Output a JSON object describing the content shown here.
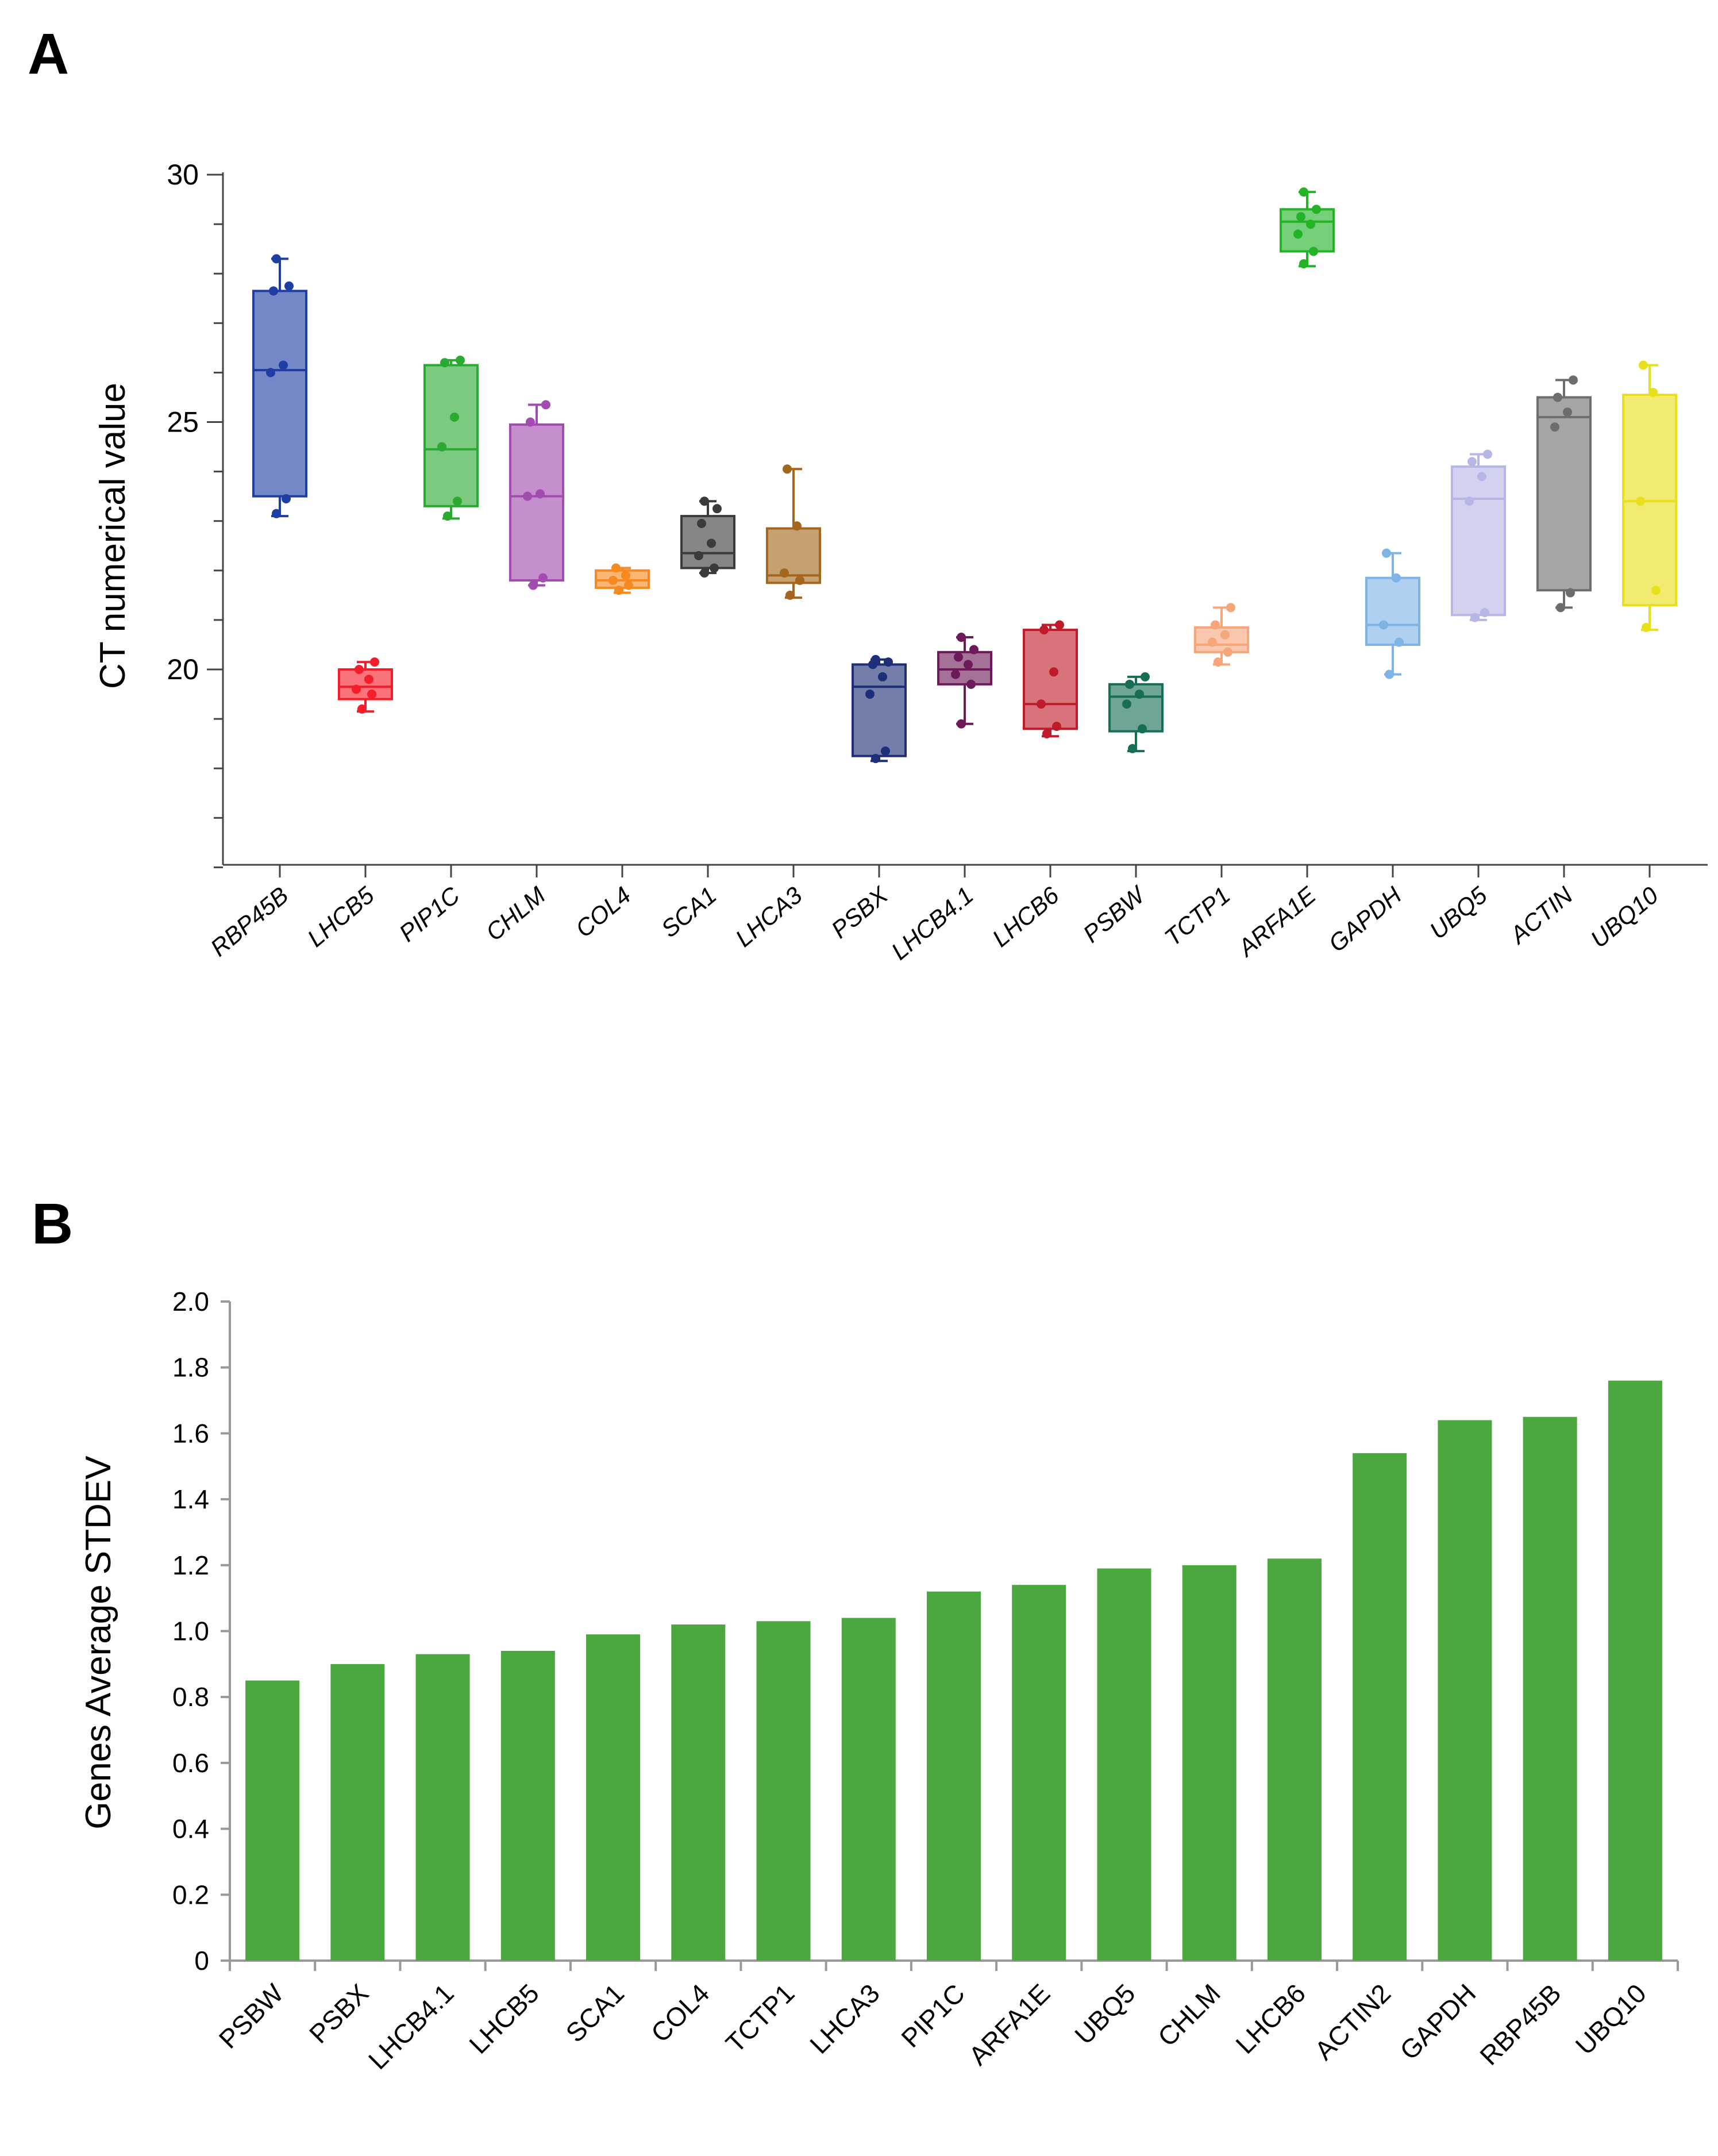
{
  "panels": {
    "a_label": "A",
    "b_label": "B"
  },
  "chart_data": [
    {
      "type": "box",
      "panel": "A",
      "title": "",
      "xlabel": "",
      "ylabel": "CT numerical value",
      "ylim": [
        16,
        30
      ],
      "yticks": [
        20,
        25,
        30
      ],
      "categories": [
        "RBP45B",
        "LHCB5",
        "PIP1C",
        "CHLM",
        "COL4",
        "SCA1",
        "LHCA3",
        "PSBX",
        "LHCB4.1",
        "LHCB6",
        "PSBW",
        "TCTP1",
        "ARFA1E",
        "GAPDH",
        "UBQ5",
        "ACTIN",
        "UBQ10"
      ],
      "colors": [
        "#1f3ea3",
        "#f51d2a",
        "#2aaa31",
        "#a24bb0",
        "#f6891f",
        "#3b3b3b",
        "#a4661c",
        "#1f2e78",
        "#6d1a5b",
        "#c01b2a",
        "#176e56",
        "#f6a679",
        "#22b326",
        "#7fb3e6",
        "#b6b7e6",
        "#6d6d6d",
        "#e8e01a"
      ],
      "boxes": [
        {
          "min": 23.1,
          "q1": 23.5,
          "median": 26.05,
          "q3": 27.65,
          "max": 28.3,
          "points": [
            23.15,
            23.45,
            26.0,
            26.15,
            27.65,
            27.75,
            28.3
          ]
        },
        {
          "min": 19.15,
          "q1": 19.4,
          "median": 19.65,
          "q3": 20.0,
          "max": 20.15,
          "points": [
            19.2,
            19.5,
            19.6,
            19.8,
            20.0,
            20.15
          ]
        },
        {
          "min": 23.05,
          "q1": 23.3,
          "median": 24.45,
          "q3": 26.15,
          "max": 26.25,
          "points": [
            23.1,
            23.4,
            24.5,
            25.1,
            26.2,
            26.25
          ]
        },
        {
          "min": 21.7,
          "q1": 21.8,
          "median": 23.5,
          "q3": 24.95,
          "max": 25.35,
          "points": [
            21.7,
            21.85,
            23.5,
            23.55,
            25.0,
            25.35
          ]
        },
        {
          "min": 21.55,
          "q1": 21.65,
          "median": 21.8,
          "q3": 22.0,
          "max": 22.05,
          "points": [
            21.6,
            21.7,
            21.8,
            21.9,
            22.05
          ]
        },
        {
          "min": 21.95,
          "q1": 22.05,
          "median": 22.35,
          "q3": 23.1,
          "max": 23.4,
          "points": [
            21.95,
            22.05,
            22.3,
            22.55,
            22.95,
            23.25,
            23.4
          ]
        },
        {
          "min": 21.45,
          "q1": 21.75,
          "median": 21.9,
          "q3": 22.85,
          "max": 24.05,
          "points": [
            21.5,
            21.8,
            21.95,
            22.9,
            24.05
          ]
        },
        {
          "min": 18.15,
          "q1": 18.25,
          "median": 19.65,
          "q3": 20.1,
          "max": 20.2,
          "points": [
            18.2,
            18.35,
            19.5,
            19.85,
            20.1,
            20.15,
            20.2
          ]
        },
        {
          "min": 18.9,
          "q1": 19.7,
          "median": 20.0,
          "q3": 20.35,
          "max": 20.65,
          "points": [
            18.9,
            19.7,
            19.9,
            20.1,
            20.25,
            20.4,
            20.65
          ]
        },
        {
          "min": 18.65,
          "q1": 18.8,
          "median": 19.3,
          "q3": 20.8,
          "max": 20.9,
          "points": [
            18.7,
            18.85,
            19.3,
            19.95,
            20.8,
            20.9
          ]
        },
        {
          "min": 18.35,
          "q1": 18.75,
          "median": 19.45,
          "q3": 19.7,
          "max": 19.85,
          "points": [
            18.4,
            18.8,
            19.3,
            19.5,
            19.7,
            19.85
          ]
        },
        {
          "min": 20.1,
          "q1": 20.35,
          "median": 20.5,
          "q3": 20.85,
          "max": 21.25,
          "points": [
            20.15,
            20.35,
            20.55,
            20.7,
            20.9,
            21.25
          ]
        },
        {
          "min": 28.15,
          "q1": 28.45,
          "median": 29.05,
          "q3": 29.3,
          "max": 29.65,
          "points": [
            28.2,
            28.45,
            28.8,
            29.0,
            29.15,
            29.3,
            29.65
          ]
        },
        {
          "min": 19.9,
          "q1": 20.5,
          "median": 20.9,
          "q3": 21.85,
          "max": 22.35,
          "points": [
            19.9,
            20.55,
            20.9,
            21.85,
            22.35
          ]
        },
        {
          "min": 21.0,
          "q1": 21.1,
          "median": 23.45,
          "q3": 24.1,
          "max": 24.35,
          "points": [
            21.05,
            21.15,
            23.4,
            23.9,
            24.2,
            24.35
          ]
        },
        {
          "min": 21.25,
          "q1": 21.6,
          "median": 25.1,
          "q3": 25.5,
          "max": 25.85,
          "points": [
            21.25,
            21.55,
            24.9,
            25.2,
            25.5,
            25.85
          ]
        },
        {
          "min": 20.8,
          "q1": 21.3,
          "median": 23.4,
          "q3": 25.55,
          "max": 26.15,
          "points": [
            20.85,
            21.6,
            23.4,
            25.6,
            26.15
          ]
        }
      ]
    },
    {
      "type": "bar",
      "panel": "B",
      "title": "",
      "xlabel": "",
      "ylabel": "Genes Average STDEV",
      "ylim": [
        0,
        2.0
      ],
      "yticks": [
        "0",
        "0.2",
        "0.4",
        "0.6",
        "0.8",
        "1.0",
        "1.2",
        "1.4",
        "1.6",
        "1.8",
        "2.0"
      ],
      "color": "#4aa83e",
      "categories": [
        "PSBW",
        "PSBX",
        "LHCB4.1",
        "LHCB5",
        "SCA1",
        "COL4",
        "TCTP1",
        "LHCA3",
        "PIP1C",
        "ARFA1E",
        "UBQ5",
        "CHLM",
        "LHCB6",
        "ACTIN2",
        "GAPDH",
        "RBP45B",
        "UBQ10"
      ],
      "values": [
        0.85,
        0.9,
        0.93,
        0.94,
        0.99,
        1.02,
        1.03,
        1.04,
        1.12,
        1.14,
        1.19,
        1.2,
        1.22,
        1.54,
        1.64,
        1.65,
        1.76
      ]
    }
  ]
}
